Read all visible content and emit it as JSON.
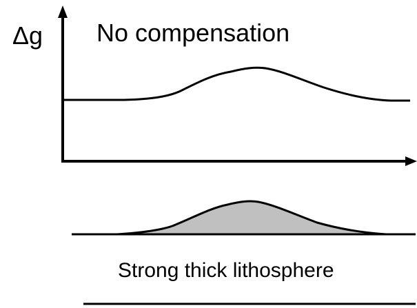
{
  "figure": {
    "y_axis_label": "Δg",
    "title": "No compensation",
    "layer_label": "Strong thick lithosphere"
  },
  "colors": {
    "ink": "#000000",
    "topography_fill": "#c0c0c0",
    "background": "#ffffff"
  }
}
